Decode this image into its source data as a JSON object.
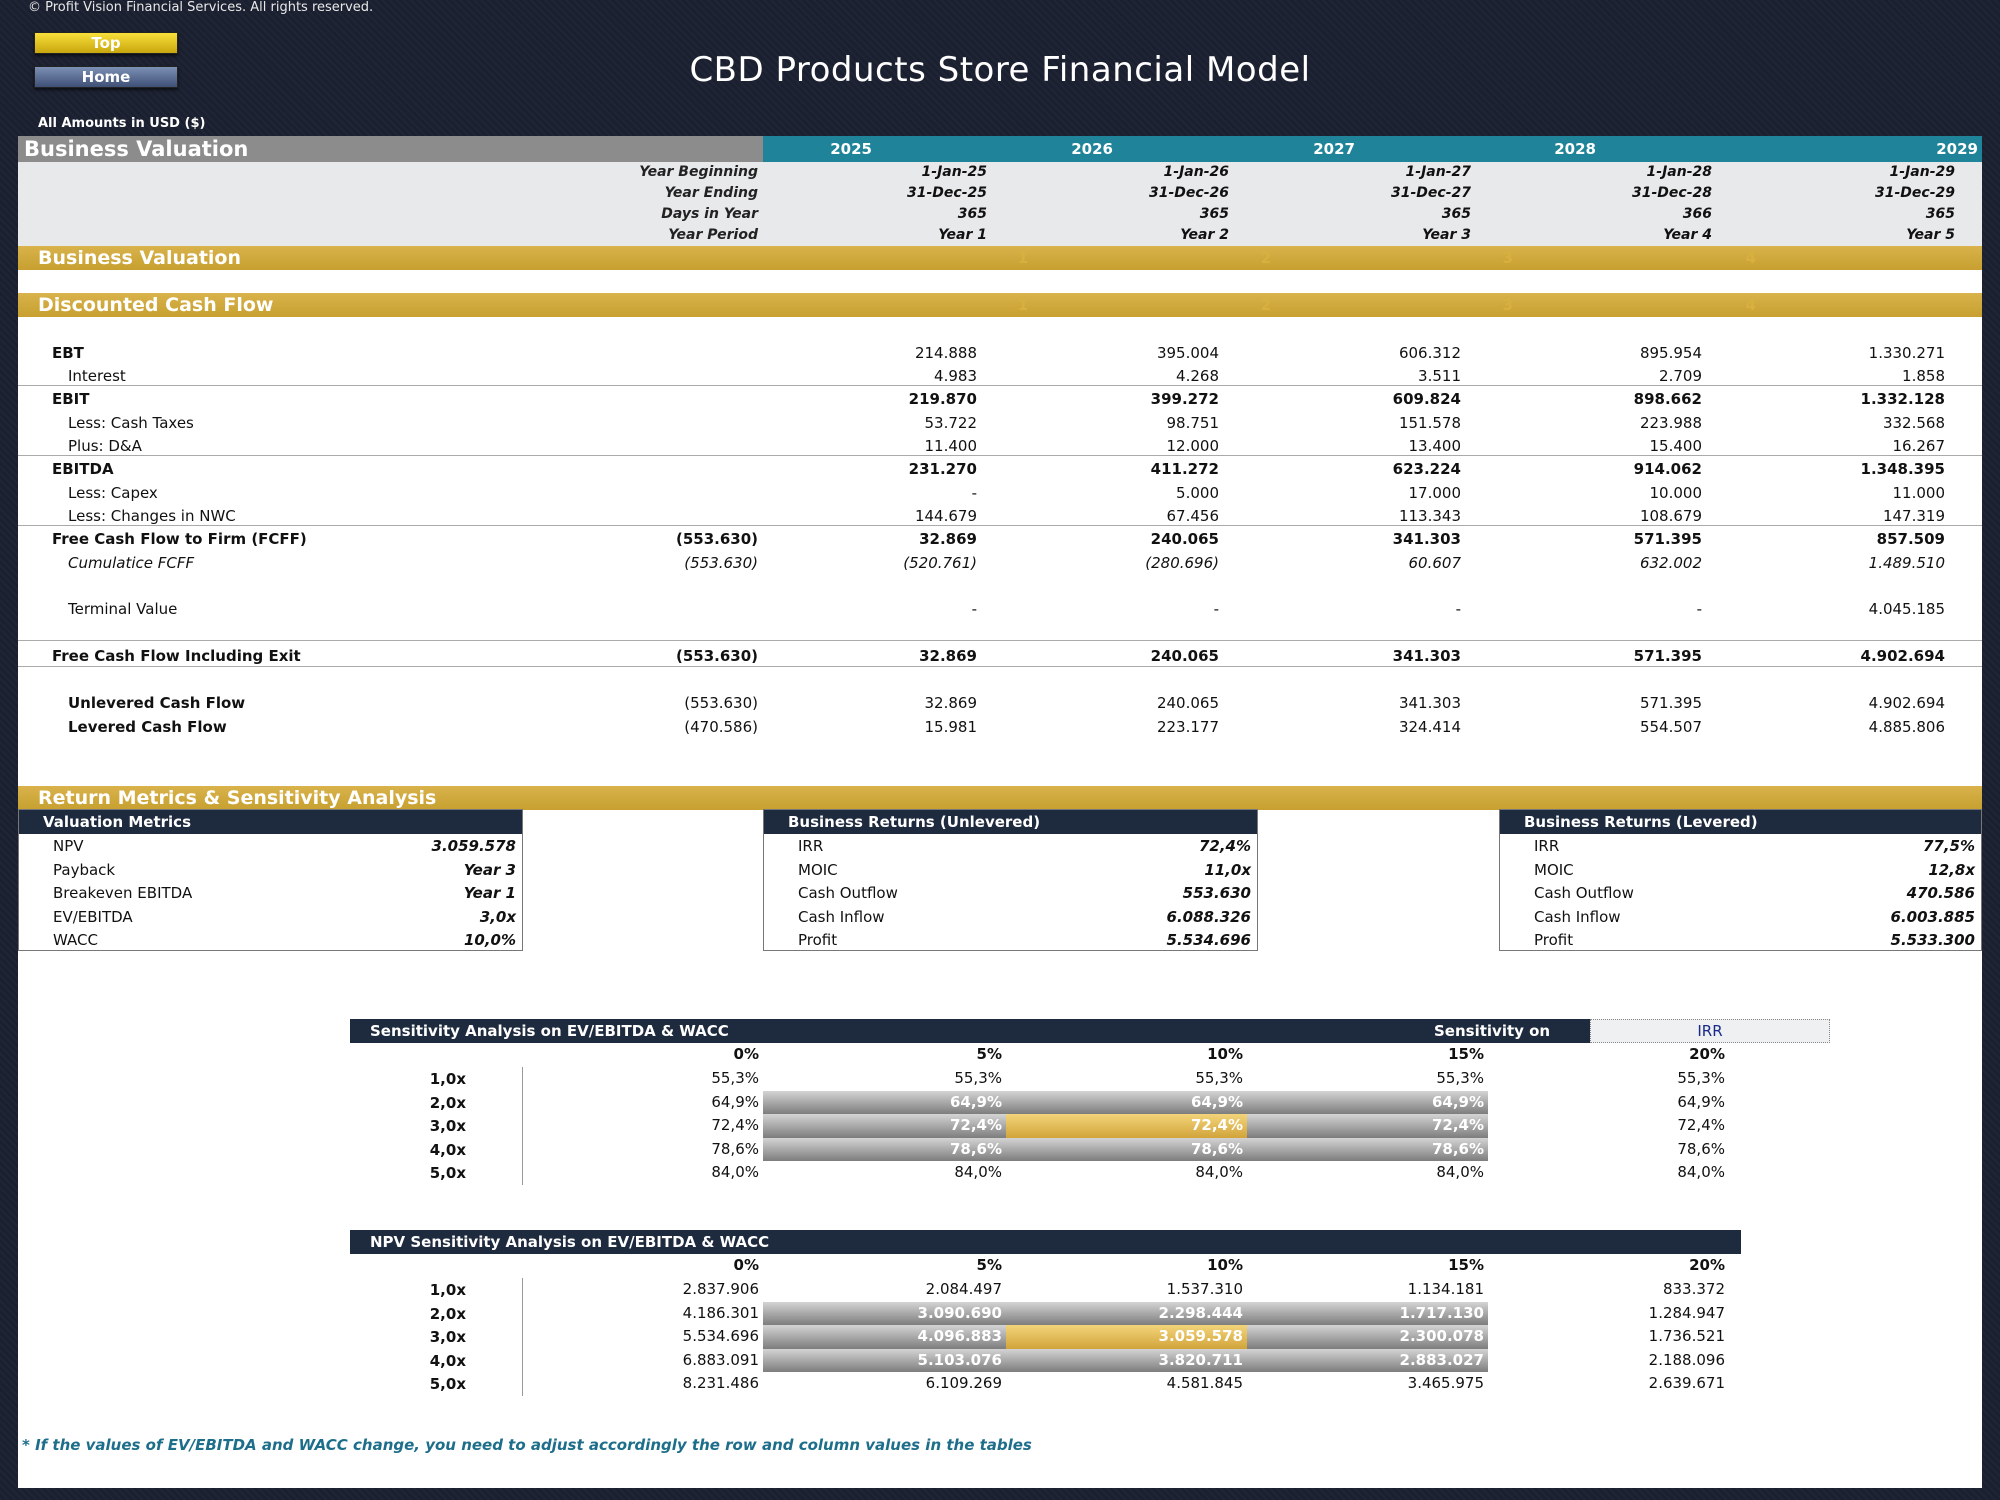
{
  "copyright": "© Profit Vision Financial Services. All rights reserved.",
  "nav": {
    "top": "Top",
    "home": "Home"
  },
  "title": "CBD Products Store Financial Model",
  "amounts_note": "All Amounts in  USD ($)",
  "header": {
    "section": "Business Valuation",
    "years": [
      "2025",
      "2026",
      "2027",
      "2028",
      "2029"
    ],
    "rows": [
      {
        "label": "Year Beginning",
        "values": [
          "1-Jan-25",
          "1-Jan-26",
          "1-Jan-27",
          "1-Jan-28",
          "1-Jan-29"
        ]
      },
      {
        "label": "Year Ending",
        "values": [
          "31-Dec-25",
          "31-Dec-26",
          "31-Dec-27",
          "31-Dec-28",
          "31-Dec-29"
        ]
      },
      {
        "label": "Days in Year",
        "values": [
          "365",
          "365",
          "365",
          "366",
          "365"
        ]
      },
      {
        "label": "Year Period",
        "values": [
          "Year 1",
          "Year 2",
          "Year 3",
          "Year 4",
          "Year 5"
        ]
      }
    ]
  },
  "bars": {
    "business_valuation": "Business Valuation",
    "dcf": "Discounted Cash Flow",
    "return_metrics": "Return Metrics & Sensitivity Analysis",
    "period_numbers": [
      "1",
      "2",
      "3",
      "4",
      "5"
    ]
  },
  "dcf_rows": [
    {
      "label": "EBT",
      "initial": "",
      "values": [
        "214.888",
        "395.004",
        "606.312",
        "895.954",
        "1.330.271"
      ]
    },
    {
      "label": "Interest",
      "initial": "",
      "values": [
        "4.983",
        "4.268",
        "3.511",
        "2.709",
        "1.858"
      ]
    },
    {
      "label": "EBIT",
      "initial": "",
      "values": [
        "219.870",
        "399.272",
        "609.824",
        "898.662",
        "1.332.128"
      ]
    },
    {
      "label": "Less: Cash Taxes",
      "initial": "",
      "values": [
        "53.722",
        "98.751",
        "151.578",
        "223.988",
        "332.568"
      ]
    },
    {
      "label": "Plus: D&A",
      "initial": "",
      "values": [
        "11.400",
        "12.000",
        "13.400",
        "15.400",
        "16.267"
      ]
    },
    {
      "label": "EBITDA",
      "initial": "",
      "values": [
        "231.270",
        "411.272",
        "623.224",
        "914.062",
        "1.348.395"
      ]
    },
    {
      "label": "Less: Capex",
      "initial": "",
      "values": [
        "-",
        "5.000",
        "17.000",
        "10.000",
        "11.000"
      ]
    },
    {
      "label": "Less: Changes in NWC",
      "initial": "",
      "values": [
        "144.679",
        "67.456",
        "113.343",
        "108.679",
        "147.319"
      ]
    },
    {
      "label": "Free Cash Flow to Firm (FCFF)",
      "initial": "(553.630)",
      "values": [
        "32.869",
        "240.065",
        "341.303",
        "571.395",
        "857.509"
      ]
    },
    {
      "label": "Cumulatice FCFF",
      "initial": "(553.630)",
      "values": [
        "(520.761)",
        "(280.696)",
        "60.607",
        "632.002",
        "1.489.510"
      ]
    },
    {
      "label": "Terminal Value",
      "initial": "",
      "values": [
        "-",
        "-",
        "-",
        "-",
        "4.045.185"
      ]
    },
    {
      "label": "Free Cash Flow Including Exit",
      "initial": "(553.630)",
      "values": [
        "32.869",
        "240.065",
        "341.303",
        "571.395",
        "4.902.694"
      ]
    },
    {
      "label": "Unlevered Cash Flow",
      "initial": "(553.630)",
      "values": [
        "32.869",
        "240.065",
        "341.303",
        "571.395",
        "4.902.694"
      ]
    },
    {
      "label": "Levered Cash Flow",
      "initial": "(470.586)",
      "values": [
        "15.981",
        "223.177",
        "324.414",
        "554.507",
        "4.885.806"
      ]
    }
  ],
  "valuation_metrics": {
    "title": "Valuation Metrics",
    "rows": [
      {
        "label": "NPV",
        "value": "3.059.578"
      },
      {
        "label": "Payback",
        "value": "Year 3"
      },
      {
        "label": "Breakeven EBITDA",
        "value": "Year 1"
      },
      {
        "label": "EV/EBITDA",
        "value": "3,0x"
      },
      {
        "label": "WACC",
        "value": "10,0%"
      }
    ]
  },
  "returns_unlevered": {
    "title": "Business Returns (Unlevered)",
    "rows": [
      {
        "label": "IRR",
        "value": "72,4%"
      },
      {
        "label": "MOIC",
        "value": "11,0x"
      },
      {
        "label": "Cash Outflow",
        "value": "553.630"
      },
      {
        "label": "Cash Inflow",
        "value": "6.088.326"
      },
      {
        "label": "Profit",
        "value": "5.534.696"
      }
    ]
  },
  "returns_levered": {
    "title": "Business Returns (Levered)",
    "rows": [
      {
        "label": "IRR",
        "value": "77,5%"
      },
      {
        "label": "MOIC",
        "value": "12,8x"
      },
      {
        "label": "Cash Outflow",
        "value": "470.586"
      },
      {
        "label": "Cash Inflow",
        "value": "6.003.885"
      },
      {
        "label": "Profit",
        "value": "5.533.300"
      }
    ]
  },
  "sens_irr": {
    "title": "Sensitivity Analysis on EV/EBITDA & WACC",
    "field_label": "Sensitivity on",
    "field_value": "IRR",
    "cols": [
      "0%",
      "5%",
      "10%",
      "15%",
      "20%"
    ],
    "rows": [
      {
        "label": "1,0x",
        "values": [
          "55,3%",
          "55,3%",
          "55,3%",
          "55,3%",
          "55,3%"
        ]
      },
      {
        "label": "2,0x",
        "values": [
          "64,9%",
          "64,9%",
          "64,9%",
          "64,9%",
          "64,9%"
        ]
      },
      {
        "label": "3,0x",
        "values": [
          "72,4%",
          "72,4%",
          "72,4%",
          "72,4%",
          "72,4%"
        ]
      },
      {
        "label": "4,0x",
        "values": [
          "78,6%",
          "78,6%",
          "78,6%",
          "78,6%",
          "78,6%"
        ]
      },
      {
        "label": "5,0x",
        "values": [
          "84,0%",
          "84,0%",
          "84,0%",
          "84,0%",
          "84,0%"
        ]
      }
    ]
  },
  "sens_npv": {
    "title": "NPV Sensitivity Analysis on EV/EBITDA & WACC",
    "cols": [
      "0%",
      "5%",
      "10%",
      "15%",
      "20%"
    ],
    "rows": [
      {
        "label": "1,0x",
        "values": [
          "2.837.906",
          "2.084.497",
          "1.537.310",
          "1.134.181",
          "833.372"
        ]
      },
      {
        "label": "2,0x",
        "values": [
          "4.186.301",
          "3.090.690",
          "2.298.444",
          "1.717.130",
          "1.284.947"
        ]
      },
      {
        "label": "3,0x",
        "values": [
          "5.534.696",
          "4.096.883",
          "3.059.578",
          "2.300.078",
          "1.736.521"
        ]
      },
      {
        "label": "4,0x",
        "values": [
          "6.883.091",
          "5.103.076",
          "3.820.711",
          "2.883.027",
          "2.188.096"
        ]
      },
      {
        "label": "5,0x",
        "values": [
          "8.231.486",
          "6.109.269",
          "4.581.845",
          "3.465.975",
          "2.639.671"
        ]
      }
    ]
  },
  "footnote": "* If the values of EV/EBITDA and WACC change, you need to adjust accordingly the row and column values in the tables",
  "colors": {
    "gold": "#c9a232",
    "teal": "#1f8499",
    "navy": "#1e2a3e",
    "footnote": "#1d6e8a"
  }
}
